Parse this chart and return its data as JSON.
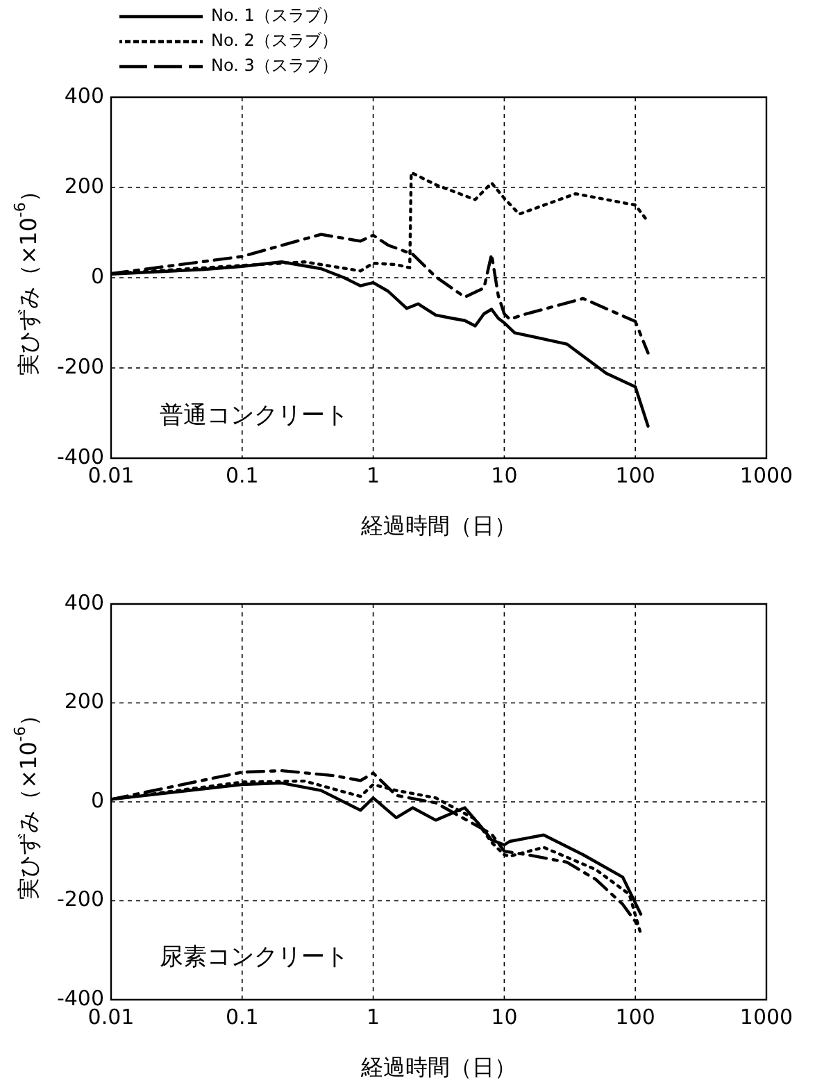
{
  "chart_data": [
    {
      "type": "line",
      "xlabel": "経過時間（日）",
      "ylabel": "実ひずみ（×10$^{-6}$）",
      "log": "x",
      "grid": true,
      "legend": "top left",
      "marker": "none",
      "xlim": [
        0.01,
        1000
      ],
      "xticks": [
        0.01,
        0.1,
        1,
        10,
        100,
        1000
      ],
      "ylim": [
        -400,
        400
      ],
      "yticks": [
        -400,
        -200,
        0,
        200,
        400
      ],
      "annotations": [
        "普通コンクリート"
      ],
      "series": [
        {
          "name": "No. 1（スラブ）",
          "color": "#000000",
          "line_style": "solid",
          "x": [
            0.01,
            0.05,
            0.1,
            0.2,
            0.4,
            0.6,
            0.8,
            1,
            1.3,
            1.8,
            2.2,
            3,
            4,
            5,
            6,
            7,
            8,
            9,
            10,
            12,
            30,
            60,
            100,
            125
          ],
          "values": [
            8,
            18,
            25,
            35,
            20,
            0,
            -18,
            -11,
            -30,
            -68,
            -58,
            -83,
            -90,
            -95,
            -107,
            -80,
            -70,
            -90,
            -100,
            -122,
            -147,
            -212,
            -242,
            -329
          ]
        },
        {
          "name": "No. 2（スラブ）",
          "color": "#000000",
          "line_style": "dotted",
          "x": [
            0.01,
            0.1,
            0.3,
            0.8,
            1,
            1.5,
            1.9,
            1.95,
            3,
            6,
            8,
            10,
            13,
            35,
            100,
            125
          ],
          "values": [
            9,
            27,
            35,
            15,
            32,
            29,
            22,
            233,
            206,
            173,
            210,
            176,
            141,
            186,
            161,
            124
          ]
        },
        {
          "name": "No. 3（スラブ）",
          "color": "#000000",
          "line_style": "dashed",
          "x": [
            0.01,
            0.1,
            0.4,
            0.8,
            1,
            1.3,
            2,
            3,
            5,
            7,
            8,
            9,
            10,
            11,
            14,
            40,
            100,
            125
          ],
          "values": [
            9,
            47,
            96,
            81,
            94,
            72,
            52,
            2,
            -43,
            -23,
            52,
            -40,
            -80,
            -92,
            -82,
            -46,
            -97,
            -167
          ]
        }
      ]
    },
    {
      "type": "line",
      "xlabel": "経過時間（日）",
      "ylabel": "実ひずみ（×10$^{-6}$）",
      "log": "x",
      "grid": true,
      "marker": "none",
      "xlim": [
        0.01,
        1000
      ],
      "xticks": [
        0.01,
        0.1,
        1,
        10,
        100,
        1000
      ],
      "ylim": [
        -400,
        400
      ],
      "yticks": [
        -400,
        -200,
        0,
        200,
        400
      ],
      "annotations": [
        "尿素コンクリート"
      ],
      "series": [
        {
          "color": "#000000",
          "line_style": "solid",
          "x": [
            0.01,
            0.1,
            0.2,
            0.4,
            0.8,
            1,
            1.5,
            2,
            3,
            5,
            7,
            8,
            10,
            11,
            20,
            40,
            80,
            110
          ],
          "values": [
            5,
            35,
            38,
            23,
            -17,
            8,
            -32,
            -12,
            -37,
            -12,
            -57,
            -77,
            -87,
            -80,
            -67,
            -107,
            -152,
            -227
          ]
        },
        {
          "color": "#000000",
          "line_style": "dotted",
          "x": [
            0.01,
            0.1,
            0.3,
            0.8,
            1,
            1.5,
            3,
            6,
            8,
            10,
            11,
            20,
            50,
            90,
            110
          ],
          "values": [
            5,
            40,
            42,
            11,
            35,
            23,
            8,
            -35,
            -82,
            -107,
            -110,
            -92,
            -137,
            -187,
            -267
          ]
        },
        {
          "color": "#000000",
          "line_style": "dashed",
          "x": [
            0.01,
            0.1,
            0.2,
            0.5,
            0.8,
            1,
            1.5,
            3,
            8,
            10,
            15,
            30,
            50,
            80,
            110
          ],
          "values": [
            5,
            60,
            63,
            53,
            43,
            58,
            13,
            -2,
            -65,
            -100,
            -107,
            -122,
            -157,
            -207,
            -257
          ]
        }
      ]
    }
  ]
}
